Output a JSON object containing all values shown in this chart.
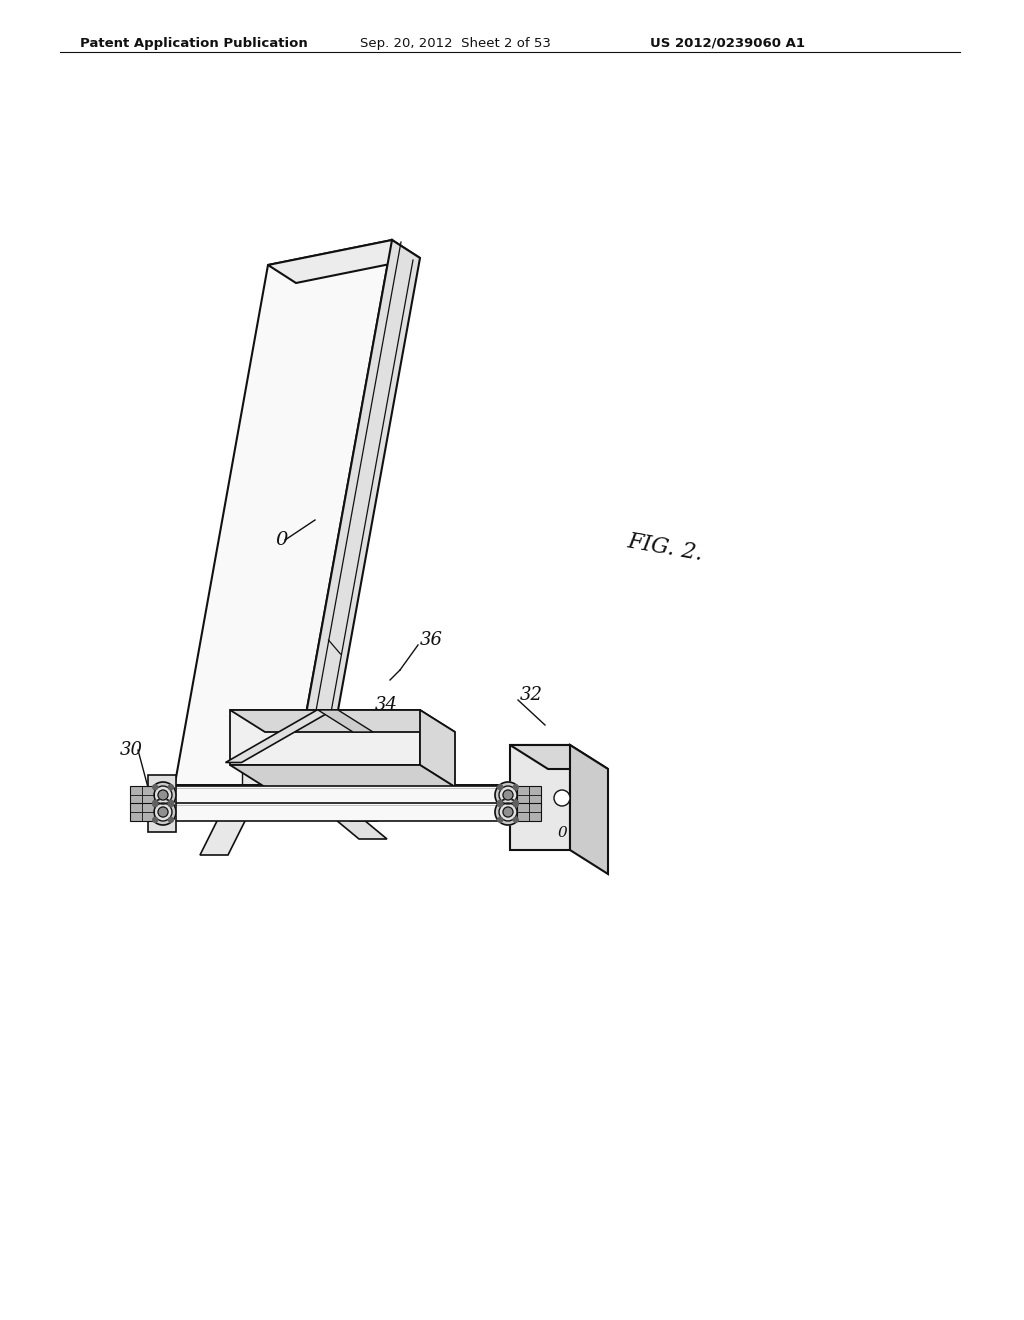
{
  "background_color": "#ffffff",
  "header_text": "Patent Application Publication",
  "header_date": "Sep. 20, 2012  Sheet 2 of 53",
  "header_patent": "US 2012/0239060 A1",
  "fig_label": "FIG. 2.",
  "label_0_panel": "0",
  "label_30": "30",
  "label_32": "32",
  "label_34": "34",
  "label_36": "36",
  "label_0_small": "0",
  "line_color": "#111111",
  "panel_face_color": "#f9f9f9",
  "panel_side_color": "#e0e0e0",
  "panel_top_color": "#ececec",
  "bracket_color": "#f0f0f0",
  "bracket_side_color": "#d8d8d8",
  "mount_color": "#e8e8e8",
  "rail_color": "#f2f2f2",
  "dark_color": "#555555"
}
